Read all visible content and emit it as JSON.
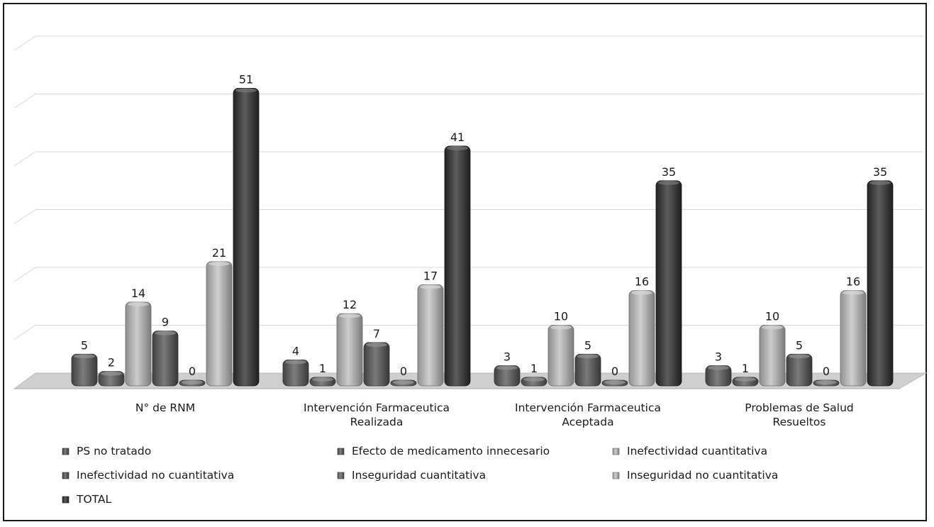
{
  "chart_data": {
    "type": "bar",
    "categories": [
      [
        "N° de RNM"
      ],
      [
        "Intervención Farmaceutica",
        "Realizada"
      ],
      [
        "Intervención Farmaceutica",
        "Aceptada"
      ],
      [
        "Problemas de Salud",
        "Resueltos"
      ]
    ],
    "series": [
      {
        "name": "PS no tratado",
        "values": [
          5,
          4,
          3,
          3
        ],
        "color": "#585858"
      },
      {
        "name": "Efecto de medicamento innecesario",
        "values": [
          2,
          1,
          1,
          1
        ],
        "color": "#5c5c5c"
      },
      {
        "name": "Inefectividad cuantitativa",
        "values": [
          14,
          12,
          10,
          10
        ],
        "color": "#bdbdbd"
      },
      {
        "name": "Inefectividad no cuantitativa",
        "values": [
          9,
          7,
          5,
          5
        ],
        "color": "#555555"
      },
      {
        "name": "Inseguridad cuantitativa",
        "values": [
          0,
          0,
          0,
          0
        ],
        "color": "#666666"
      },
      {
        "name": "Inseguridad no cuantitativa",
        "values": [
          21,
          17,
          16,
          16
        ],
        "color": "#c2c2c2"
      },
      {
        "name": "TOTAL",
        "values": [
          51,
          41,
          35,
          35
        ],
        "color": "#2e2e2e"
      }
    ],
    "ylim": [
      0,
      60
    ],
    "grid": true,
    "legend_position": "bottom",
    "data_labels": true
  }
}
